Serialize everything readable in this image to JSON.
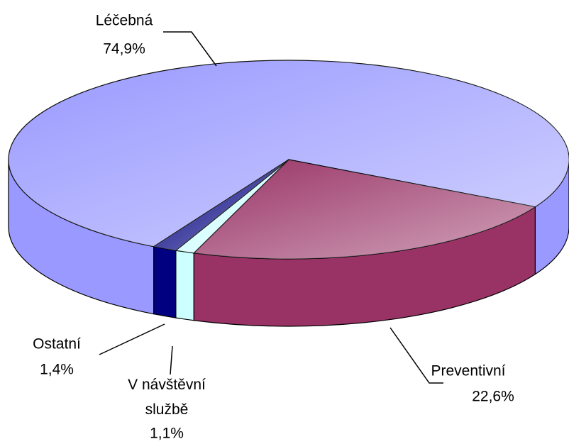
{
  "chart_data": {
    "type": "pie",
    "categories": [
      "Léčebná",
      "Preventivní",
      "V návštěvní službě",
      "Ostatní"
    ],
    "values": [
      74.9,
      22.6,
      1.1,
      1.4
    ],
    "value_labels": [
      "74,9%",
      "22,6%",
      "1,1%",
      "1,4%"
    ],
    "colors": [
      "#9999ff",
      "#993366",
      "#ccffff",
      "#000080"
    ]
  }
}
